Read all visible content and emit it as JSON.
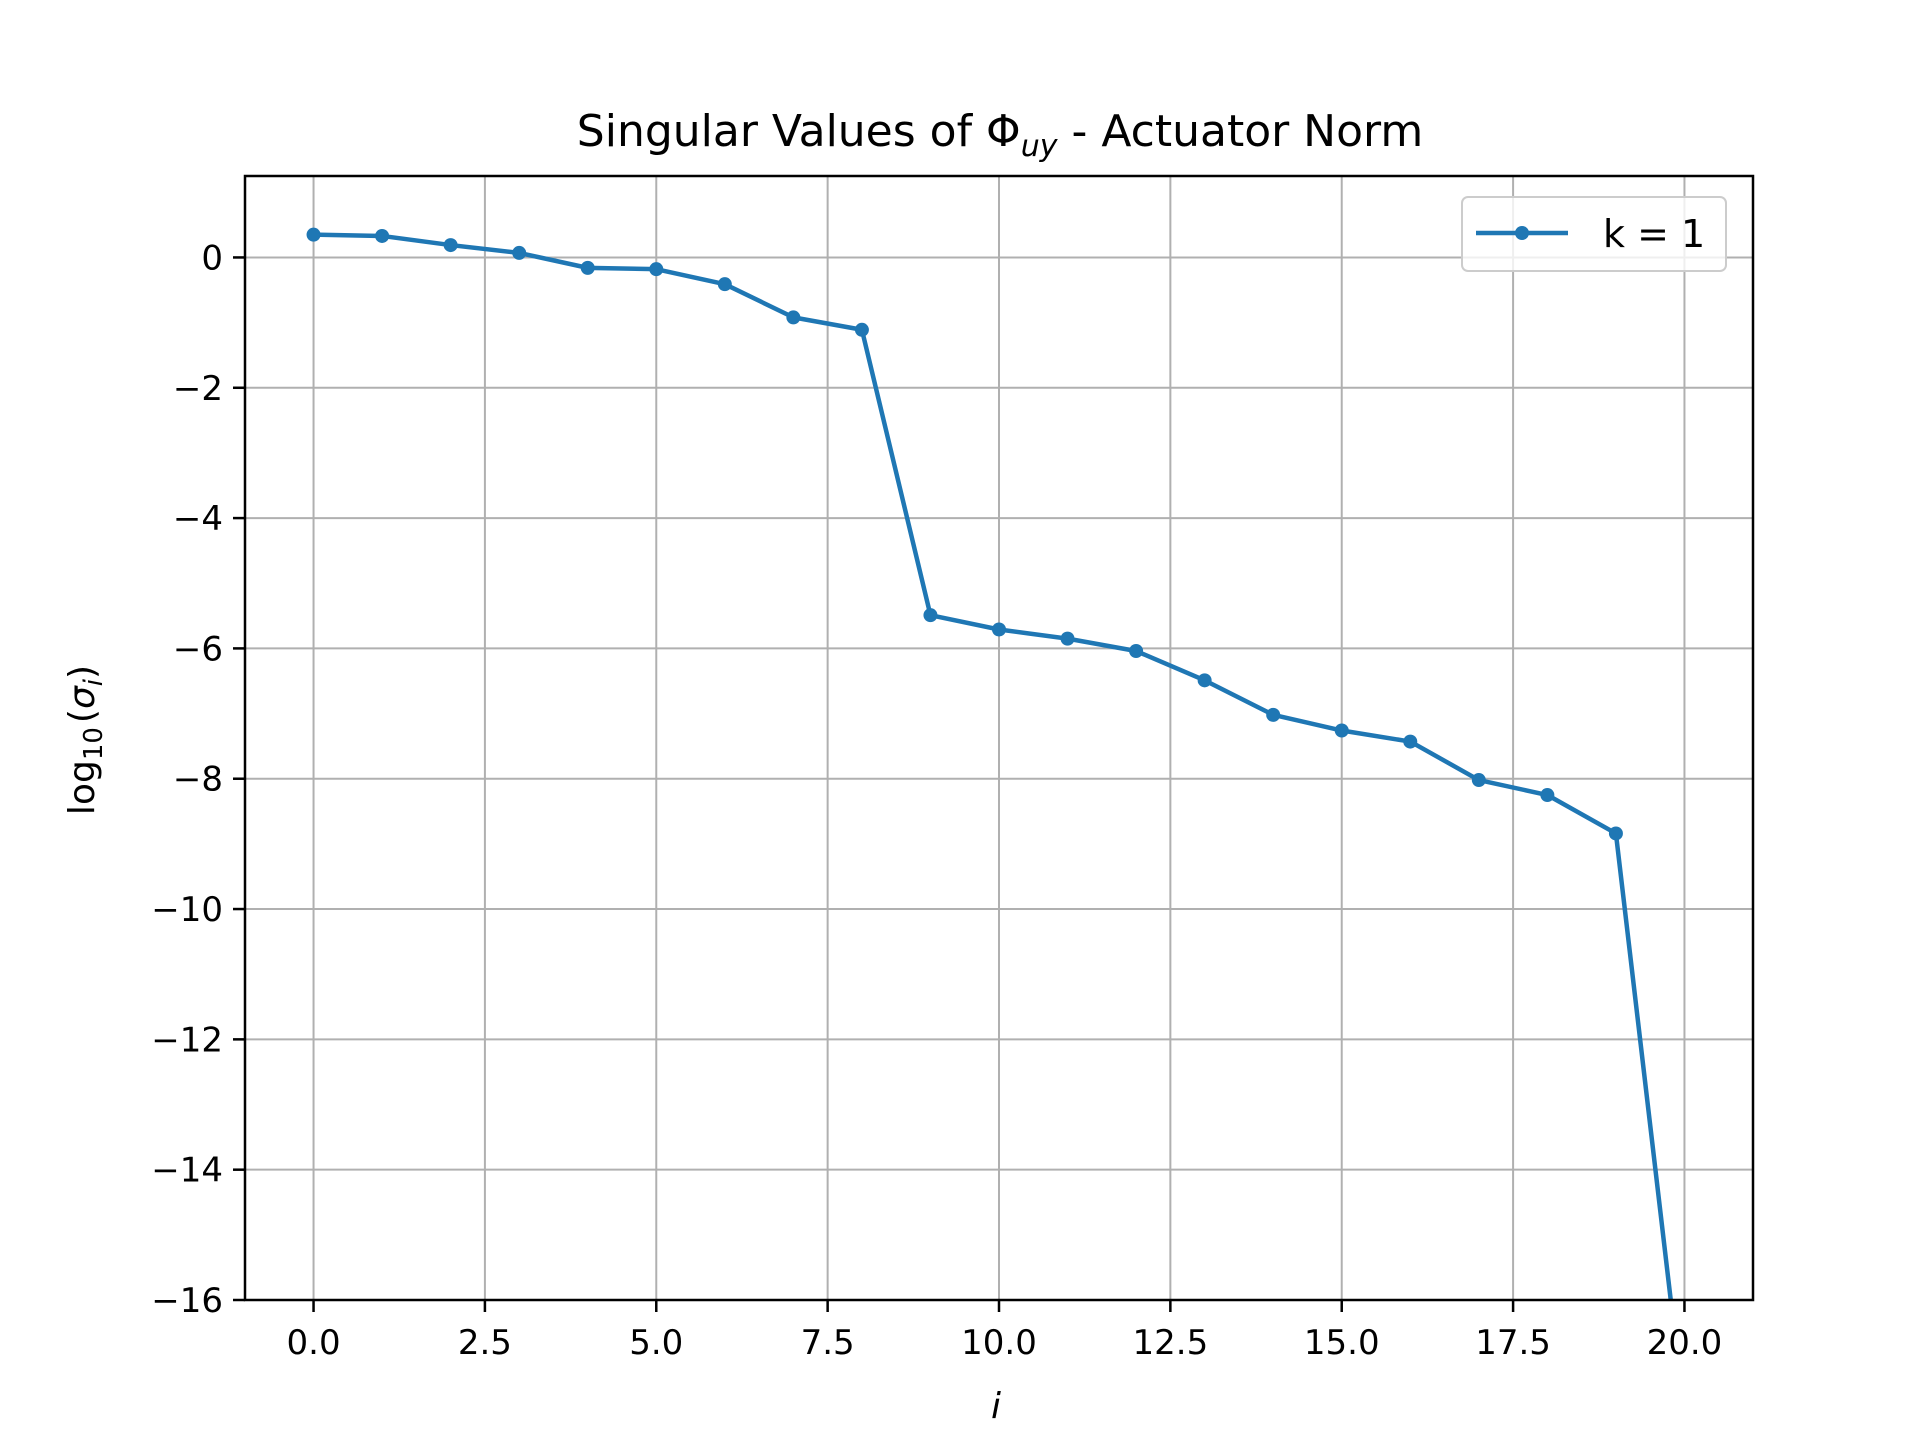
{
  "chart_data": {
    "type": "line",
    "title": {
      "prefix": "Singular Values of Φ",
      "subscript": "uy",
      "suffix": " - Actuator Norm"
    },
    "xlabel": "i",
    "ylabel": {
      "main": "log",
      "subscript": "10",
      "open": "(",
      "sigma": "σ",
      "sigma_sub": "i",
      "close": ")"
    },
    "xlim": [
      -1,
      21
    ],
    "ylim": [
      -16,
      1.25
    ],
    "xticks": [
      0,
      2.5,
      5,
      7.5,
      10,
      12.5,
      15,
      17.5,
      20
    ],
    "xtick_labels": [
      "0.0",
      "2.5",
      "5.0",
      "7.5",
      "10.0",
      "12.5",
      "15.0",
      "17.5",
      "20.0"
    ],
    "yticks": [
      0,
      -2,
      -4,
      -6,
      -8,
      -10,
      -12,
      -14,
      -16
    ],
    "ytick_labels": [
      "0",
      "−2",
      "−4",
      "−6",
      "−8",
      "−10",
      "−12",
      "−14",
      "−16"
    ],
    "grid": true,
    "legend_position": "top-right",
    "series": [
      {
        "name": "k = 1",
        "color": "#1f77b4",
        "x": [
          0,
          1,
          2,
          3,
          4,
          5,
          6,
          7,
          8,
          9,
          10,
          11,
          12,
          13,
          14,
          15,
          16,
          17,
          18,
          19
        ],
        "y": [
          0.35,
          0.33,
          0.19,
          0.07,
          -0.16,
          -0.18,
          -0.41,
          -0.92,
          -1.11,
          -5.49,
          -5.71,
          -5.85,
          -6.04,
          -6.49,
          -7.02,
          -7.26,
          -7.43,
          -8.02,
          -8.25,
          -8.84
        ],
        "end_x": 19.8,
        "end_y": -16
      }
    ]
  }
}
